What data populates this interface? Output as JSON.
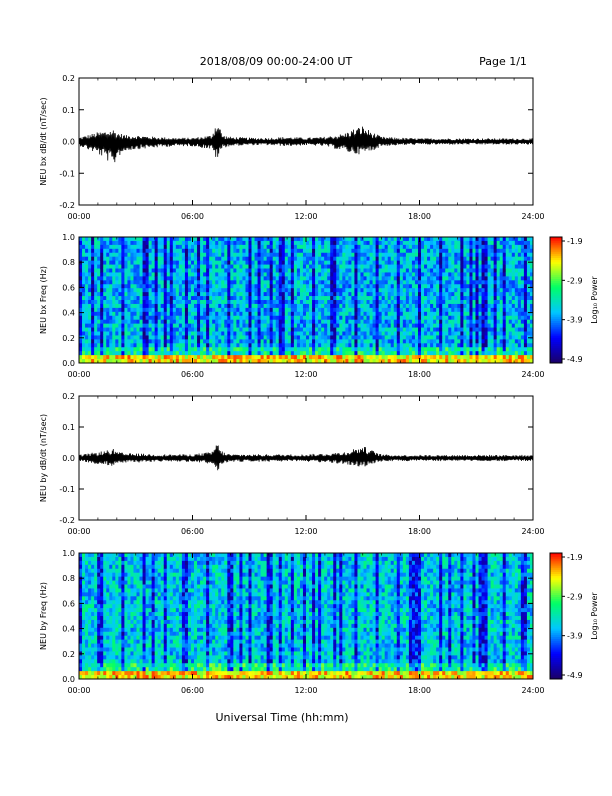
{
  "header": {
    "title": "2018/08/09  00:00-24:00 UT",
    "page": "Page 1/1"
  },
  "footer": {
    "xlabel": "Universal Time (hh:mm)"
  },
  "chart_data": [
    {
      "type": "line",
      "ylabel": "NEU bx dB/dt (nT/sec)",
      "x_ticks": [
        "00:00",
        "06:00",
        "12:00",
        "18:00",
        "24:00"
      ],
      "xlim_hours": [
        0,
        24
      ],
      "ylim": [
        -0.2,
        0.2
      ],
      "y_ticks": [
        "0.2",
        "0.1",
        "0.0",
        "-0.1",
        "-0.2"
      ],
      "series_color": "#000000",
      "envelope": {
        "x_hours": [
          0,
          1,
          1.5,
          1.8,
          2,
          2.5,
          3,
          4,
          5,
          6,
          7,
          7.3,
          7.6,
          8,
          9,
          10,
          11,
          12,
          13,
          14,
          14.5,
          15,
          15.5,
          16,
          17,
          18,
          19,
          20,
          21,
          22,
          23,
          24
        ],
        "max": [
          0.013,
          0.03,
          0.035,
          0.04,
          0.03,
          0.02,
          0.02,
          0.015,
          0.012,
          0.012,
          0.02,
          0.07,
          0.02,
          0.015,
          0.012,
          0.012,
          0.015,
          0.012,
          0.015,
          0.025,
          0.04,
          0.05,
          0.03,
          0.015,
          0.012,
          0.01,
          0.01,
          0.01,
          0.01,
          0.01,
          0.01,
          0.01
        ],
        "min": [
          -0.013,
          -0.04,
          -0.06,
          -0.09,
          -0.05,
          -0.03,
          -0.025,
          -0.02,
          -0.015,
          -0.015,
          -0.025,
          -0.06,
          -0.02,
          -0.015,
          -0.012,
          -0.012,
          -0.015,
          -0.012,
          -0.015,
          -0.03,
          -0.04,
          -0.04,
          -0.03,
          -0.015,
          -0.012,
          -0.01,
          -0.01,
          -0.01,
          -0.01,
          -0.01,
          -0.01,
          -0.01
        ]
      }
    },
    {
      "type": "heatmap",
      "ylabel": "NEU bx Freq (Hz)",
      "x_ticks": [
        "00:00",
        "06:00",
        "12:00",
        "18:00",
        "24:00"
      ],
      "xlim_hours": [
        0,
        24
      ],
      "ylim": [
        0,
        1.0
      ],
      "y_ticks": [
        "1.0",
        "0.8",
        "0.6",
        "0.4",
        "0.2",
        "0.0"
      ],
      "colorbar": {
        "label": "Log₁₀ Power",
        "ticks": [
          "-1.9",
          "-2.9",
          "-3.9",
          "-4.9"
        ],
        "range": [
          -4.9,
          -1.9
        ],
        "colors": [
          "#1a0066",
          "#0000ff",
          "#00c8ff",
          "#00ff66",
          "#ffff00",
          "#ff0000"
        ]
      },
      "typical_log_power": -3.7,
      "low_freq_log_power": -2.6
    },
    {
      "type": "line",
      "ylabel": "NEU by dB/dt (nT/sec)",
      "x_ticks": [
        "00:00",
        "06:00",
        "12:00",
        "18:00",
        "24:00"
      ],
      "xlim_hours": [
        0,
        24
      ],
      "ylim": [
        -0.2,
        0.2
      ],
      "y_ticks": [
        "0.2",
        "0.1",
        "0.0",
        "-0.1",
        "-0.2"
      ],
      "series_color": "#000000",
      "envelope": {
        "x_hours": [
          0,
          1,
          1.5,
          1.8,
          2,
          2.5,
          3,
          4,
          5,
          6,
          7,
          7.3,
          7.6,
          8,
          9,
          10,
          11,
          12,
          13,
          14,
          14.5,
          15,
          15.5,
          16,
          17,
          18,
          19,
          20,
          21,
          22,
          23,
          24
        ],
        "max": [
          0.01,
          0.02,
          0.025,
          0.03,
          0.02,
          0.015,
          0.015,
          0.012,
          0.012,
          0.012,
          0.02,
          0.05,
          0.02,
          0.012,
          0.012,
          0.012,
          0.012,
          0.012,
          0.015,
          0.02,
          0.03,
          0.04,
          0.025,
          0.012,
          0.01,
          0.01,
          0.01,
          0.01,
          0.01,
          0.01,
          0.01,
          0.01
        ],
        "min": [
          -0.01,
          -0.02,
          -0.025,
          -0.03,
          -0.02,
          -0.015,
          -0.015,
          -0.012,
          -0.012,
          -0.012,
          -0.02,
          -0.045,
          -0.02,
          -0.012,
          -0.012,
          -0.012,
          -0.012,
          -0.012,
          -0.015,
          -0.02,
          -0.025,
          -0.03,
          -0.02,
          -0.012,
          -0.01,
          -0.01,
          -0.01,
          -0.01,
          -0.01,
          -0.01,
          -0.01,
          -0.01
        ]
      }
    },
    {
      "type": "heatmap",
      "ylabel": "NEU by Freq (Hz)",
      "x_ticks": [
        "00:00",
        "06:00",
        "12:00",
        "18:00",
        "24:00"
      ],
      "xlim_hours": [
        0,
        24
      ],
      "ylim": [
        0,
        1.0
      ],
      "y_ticks": [
        "1.0",
        "0.8",
        "0.6",
        "0.4",
        "0.2",
        "0.0"
      ],
      "colorbar": {
        "label": "Log₁₀ Power",
        "ticks": [
          "-1.9",
          "-2.9",
          "-3.9",
          "-4.9"
        ],
        "range": [
          -4.9,
          -1.9
        ],
        "colors": [
          "#1a0066",
          "#0000ff",
          "#00c8ff",
          "#00ff66",
          "#ffff00",
          "#ff0000"
        ]
      },
      "typical_log_power": -3.6,
      "low_freq_log_power": -2.6
    }
  ]
}
